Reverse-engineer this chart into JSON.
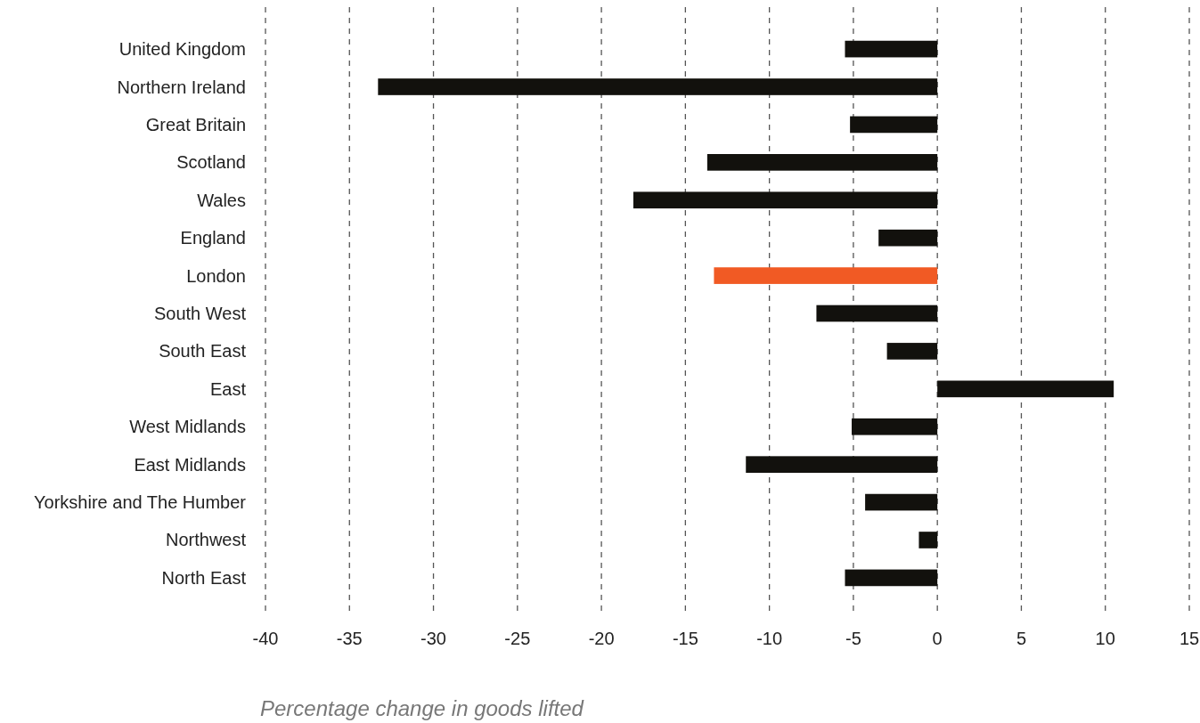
{
  "chart_data": {
    "type": "bar",
    "orientation": "horizontal",
    "xlabel": "Percentage change in goods lifted",
    "categories": [
      "United Kingdom",
      "Northern Ireland",
      "Great Britain",
      "Scotland",
      "Wales",
      "England",
      "London",
      "South West",
      "South East",
      "East",
      "West Midlands",
      "East Midlands",
      "Yorkshire and The Humber",
      "Northwest",
      "North East"
    ],
    "values": [
      -5.5,
      -33.3,
      -5.2,
      -13.7,
      -18.1,
      -3.5,
      -13.3,
      -7.2,
      -3.0,
      10.5,
      -5.1,
      -11.4,
      -4.3,
      -1.1,
      -5.5
    ],
    "colors": [
      "#12110d",
      "#12110d",
      "#12110d",
      "#12110d",
      "#12110d",
      "#12110d",
      "#f15a24",
      "#12110d",
      "#12110d",
      "#12110d",
      "#12110d",
      "#12110d",
      "#12110d",
      "#12110d",
      "#12110d"
    ],
    "xlim": [
      -40,
      15
    ],
    "xticks": [
      -40,
      -35,
      -30,
      -25,
      -20,
      -15,
      -10,
      -5,
      0,
      5,
      10,
      15
    ],
    "grid": "x"
  }
}
